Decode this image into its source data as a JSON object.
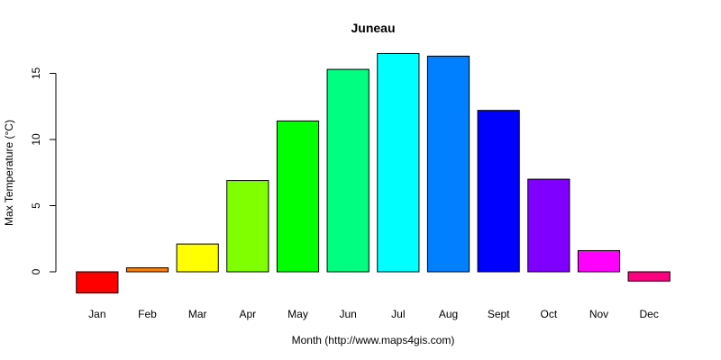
{
  "chart_data": {
    "type": "bar",
    "title": "Juneau",
    "xlabel": "Month (http://www.maps4gis.com)",
    "ylabel": "Max Temperature (°C)",
    "categories": [
      "Jan",
      "Feb",
      "Mar",
      "Apr",
      "May",
      "Jun",
      "Jul",
      "Aug",
      "Sept",
      "Oct",
      "Nov",
      "Dec"
    ],
    "values": [
      -1.6,
      0.3,
      2.1,
      6.9,
      11.4,
      15.3,
      16.5,
      16.3,
      12.2,
      7.0,
      1.6,
      -0.7
    ],
    "colors": [
      "#FF0000",
      "#FF8000",
      "#FFFF00",
      "#80FF00",
      "#00FF00",
      "#00FF80",
      "#00FFFF",
      "#0080FF",
      "#0000FF",
      "#8000FF",
      "#FF00FF",
      "#FF0080"
    ],
    "yticks": [
      0,
      5,
      10,
      15
    ],
    "ylim": [
      -2,
      17
    ],
    "grid": false,
    "legend": "none"
  }
}
